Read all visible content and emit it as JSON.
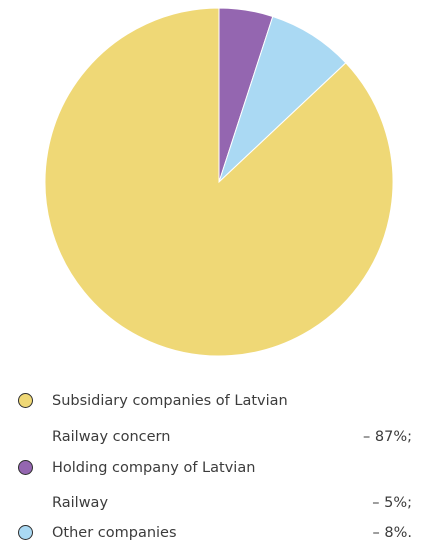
{
  "chart_data": {
    "type": "pie",
    "slices": [
      {
        "label": "Holding company of Latvian Railway",
        "value": 5,
        "color": "#9466b0"
      },
      {
        "label": "Other companies",
        "value": 8,
        "color": "#aad9f3"
      },
      {
        "label": "Subsidiary companies of Latvian Railway concern",
        "value": 87,
        "color": "#efd876"
      }
    ]
  },
  "legend": [
    {
      "line1": "Subsidiary companies of Latvian",
      "line2": "Railway concern",
      "pct": "– 87%;",
      "color": "#efd876"
    },
    {
      "line1": "Holding company of Latvian",
      "line2": "Railway",
      "pct": "– 5%;",
      "color": "#9466b0"
    },
    {
      "line1": "Other companies",
      "line2": "",
      "pct": "– 8%.",
      "color": "#aad9f3"
    }
  ]
}
